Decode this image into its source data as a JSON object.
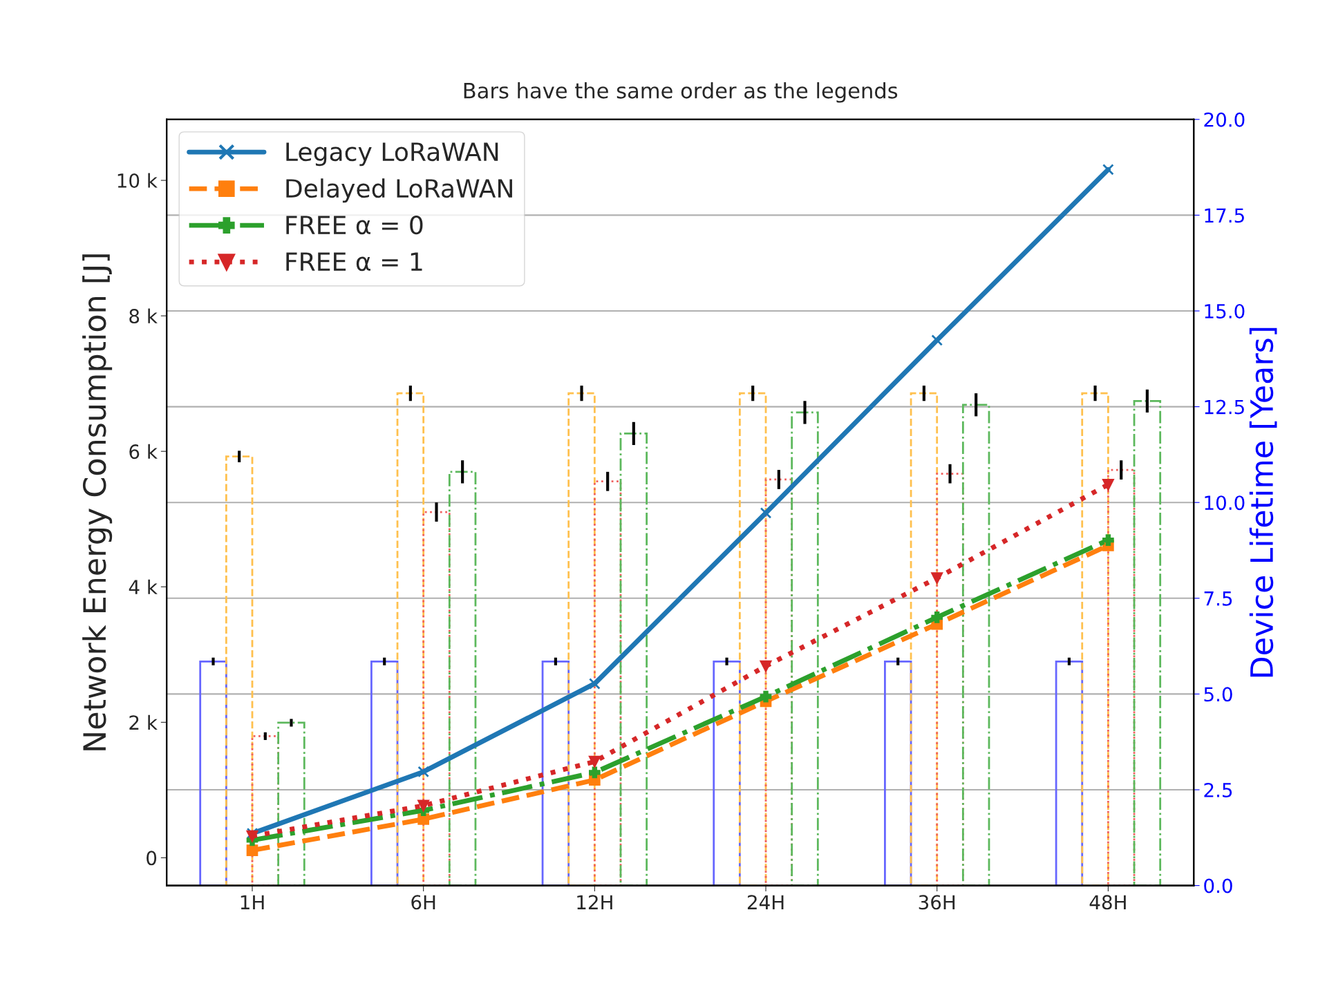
{
  "chart_data": {
    "type": "line",
    "title": "Bars have the same order as the legends",
    "ylabel": "Network Energy Consumption [J]",
    "y2label": "Device Lifetime [Years]",
    "categories": [
      "1H",
      "6H",
      "12H",
      "24H",
      "36H",
      "48H"
    ],
    "ylim": [
      -410,
      10900
    ],
    "yticks": [
      0,
      {
        "value": 2000,
        "label": "2 k"
      },
      {
        "value": 4000,
        "label": "4 k"
      },
      {
        "value": 6000,
        "label": "6 k"
      },
      {
        "value": 8000,
        "label": "8 k"
      },
      {
        "value": 10000,
        "label": "10 k"
      }
    ],
    "y2lim": [
      0,
      20
    ],
    "y2ticks": [
      {
        "value": 0,
        "label": "0.0"
      },
      {
        "value": 2.5,
        "label": "2.5"
      },
      {
        "value": 5,
        "label": "5.0"
      },
      {
        "value": 7.5,
        "label": "7.5"
      },
      {
        "value": 10,
        "label": "10.0"
      },
      {
        "value": 12.5,
        "label": "12.5"
      },
      {
        "value": 15,
        "label": "15.0"
      },
      {
        "value": 17.5,
        "label": "17.5"
      },
      {
        "value": 20,
        "label": "20.0"
      }
    ],
    "grid": "y2",
    "legend": "top left",
    "series": [
      {
        "name": "Legacy LoRaWAN",
        "color": "#1f77b4",
        "marker": "cross",
        "line_style": "solid",
        "values": [
          360,
          1270,
          2570,
          5090,
          7640,
          10160
        ]
      },
      {
        "name": "Delayed LoRaWAN",
        "color": "#ff7f0e",
        "marker": "square",
        "line_style": "dashed",
        "values": [
          110,
          570,
          1150,
          2310,
          3450,
          4610
        ]
      },
      {
        "name": "FREE α = 0",
        "color": "#2ca02c",
        "marker": "plus",
        "line_style": "dashdot",
        "values": [
          260,
          700,
          1260,
          2380,
          3550,
          4690
        ]
      },
      {
        "name": "FREE α = 1",
        "color": "#d62728",
        "marker": "triangle",
        "line_style": "dotted",
        "values": [
          320,
          770,
          1420,
          2830,
          4130,
          5510
        ]
      },
      {
        "type": "bar",
        "axis": "y2",
        "color": "#6666ff",
        "line_style": "solid",
        "values": [
          5.85,
          5.85,
          5.85,
          5.85,
          5.85,
          5.85
        ],
        "errors": [
          0.1,
          0.1,
          0.1,
          0.1,
          0.1,
          0.1
        ]
      },
      {
        "type": "bar",
        "axis": "y2",
        "color": "#ffc04d",
        "line_style": "dashed",
        "values": [
          11.2,
          12.85,
          12.85,
          12.85,
          12.85,
          12.85
        ],
        "errors": [
          0.15,
          0.2,
          0.2,
          0.2,
          0.2,
          0.2
        ]
      },
      {
        "type": "bar",
        "axis": "y2",
        "color": "#f0605f",
        "line_style": "dotted",
        "values": [
          3.9,
          9.75,
          10.55,
          10.6,
          10.75,
          10.85
        ],
        "errors": [
          0.1,
          0.25,
          0.25,
          0.25,
          0.25,
          0.25
        ]
      },
      {
        "type": "bar",
        "axis": "y2",
        "color": "#5cb85c",
        "line_style": "dashdot",
        "values": [
          4.25,
          10.8,
          11.8,
          12.35,
          12.55,
          12.65
        ],
        "errors": [
          0.1,
          0.3,
          0.3,
          0.3,
          0.3,
          0.3
        ]
      }
    ]
  }
}
